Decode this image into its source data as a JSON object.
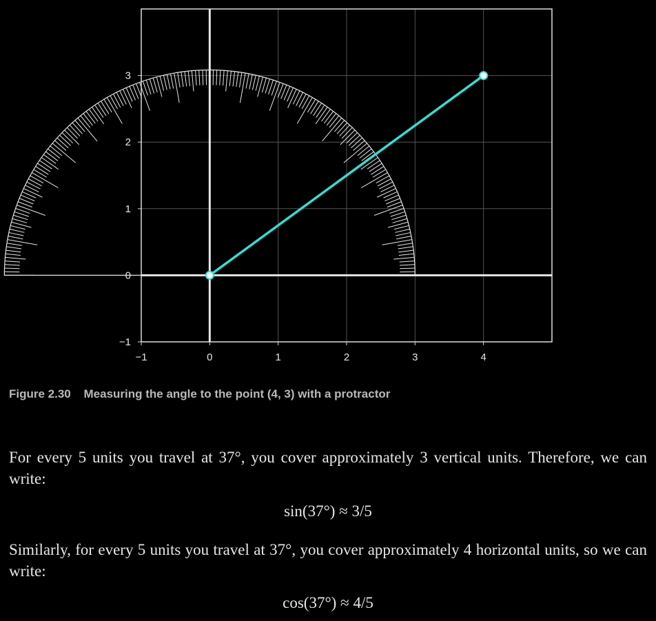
{
  "chart_data": {
    "type": "line",
    "title": "",
    "xlabel": "",
    "ylabel": "",
    "xlim": [
      -1,
      5
    ],
    "ylim": [
      -1,
      4
    ],
    "x_ticks": [
      "−1",
      "0",
      "1",
      "2",
      "3",
      "4"
    ],
    "y_ticks": [
      "−1",
      "0",
      "1",
      "2",
      "3"
    ],
    "grid": true,
    "series": [
      {
        "x": [
          0,
          4
        ],
        "y": [
          0,
          3
        ],
        "color": "#2ee0d6"
      }
    ],
    "protractor": {
      "center": [
        0,
        0
      ],
      "radius": 3
    },
    "colors": {
      "background": "#000000",
      "grid": "#555555",
      "axes": "#e6e6e6",
      "line": "#2ee0d6"
    }
  },
  "caption": {
    "number": "Figure 2.30",
    "text": "Measuring the angle to the point (4, 3) with a protractor"
  },
  "paragraph1": "For every 5 units you travel at 37°, you cover approximately 3 vertical units. Therefore, we can write:",
  "equation1": "sin(37°) ≈ 3/5",
  "paragraph2": "Similarly, for every 5 units you travel at 37°, you cover approximately 4 horizontal units, so we can write:",
  "equation2": "cos(37°) ≈ 4/5"
}
